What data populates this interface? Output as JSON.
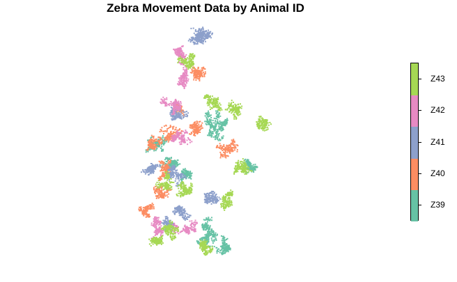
{
  "title": "Zebra Movement Data by Animal ID",
  "legend": {
    "title": "",
    "items": [
      {
        "id": "Z39",
        "label": "Z39",
        "color": "#66c2a5"
      },
      {
        "id": "Z40",
        "label": "Z40",
        "color": "#fc8d62"
      },
      {
        "id": "Z41",
        "label": "Z41",
        "color": "#8da0cb"
      },
      {
        "id": "Z42",
        "label": "Z42",
        "color": "#e78ac3"
      },
      {
        "id": "Z43",
        "label": "Z43",
        "color": "#a6d854"
      }
    ]
  }
}
